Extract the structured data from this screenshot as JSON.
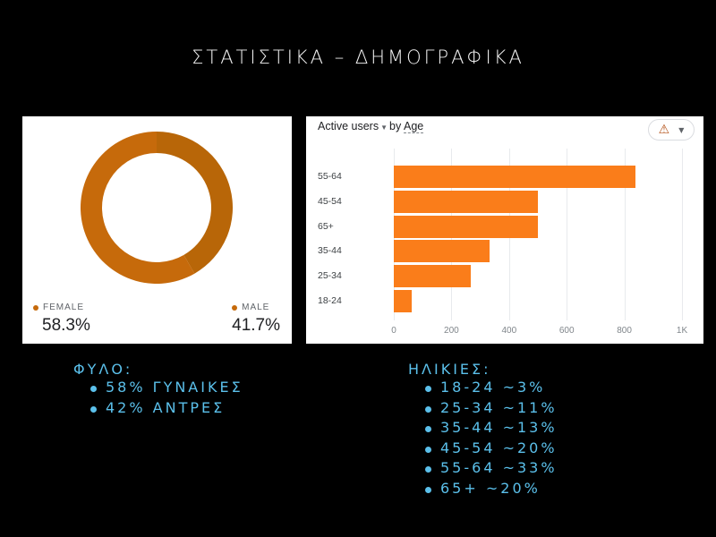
{
  "title": "ΣΤΑΤΙΣΤΙΚΑ – ΔΗΜΟΓΡΑΦΙΚΑ",
  "gender_card": {
    "legend": [
      {
        "label": "FEMALE",
        "value": "58.3%",
        "color": "#c66a0b"
      },
      {
        "label": "MALE",
        "value": "41.7%",
        "color": "#b86608"
      }
    ]
  },
  "age_card": {
    "metric": "Active users",
    "by": "by",
    "dimension": "Age",
    "warning_icon": "warning-triangle-icon",
    "bar_color": "#fa7d1a",
    "x_ticks": [
      "0",
      "200",
      "400",
      "600",
      "800",
      "1K"
    ]
  },
  "notes": {
    "gender": {
      "header": "ΦΥΛΟ:",
      "items": [
        "58% ΓΥΝΑΙΚΕΣ",
        "42% ΑΝΤΡΕΣ"
      ]
    },
    "ages": {
      "header": "ΗΛΙΚΙΕΣ:",
      "items": [
        "18-24 ~3%",
        "25-34 ~11%",
        "35-44 ~13%",
        "45-54 ~20%",
        "55-64 ~33%",
        "65+ ~20%"
      ]
    },
    "color": "#5bc0eb"
  },
  "chart_data": [
    {
      "type": "pie",
      "title": "Gender",
      "categories": [
        "FEMALE",
        "MALE"
      ],
      "values": [
        58.3,
        41.7
      ],
      "colors": [
        "#c66a0b",
        "#b86608"
      ],
      "donut": true,
      "legend_position": "bottom"
    },
    {
      "type": "bar",
      "orientation": "horizontal",
      "title": "Active users by Age",
      "categories": [
        "55-64",
        "45-54",
        "65+",
        "35-44",
        "25-34",
        "18-24"
      ],
      "values": [
        840,
        500,
        500,
        333,
        268,
        62
      ],
      "xlabel": "",
      "ylabel": "",
      "xlim": [
        0,
        1000
      ],
      "x_ticks": [
        "0",
        "200",
        "400",
        "600",
        "800",
        "1K"
      ],
      "grid": true
    }
  ]
}
